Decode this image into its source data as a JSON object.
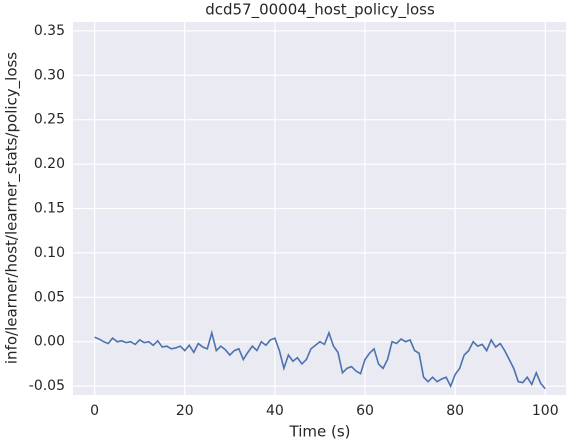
{
  "chart_data": {
    "type": "line",
    "title": "dcd57_00004_host_policy_loss",
    "xlabel": "Time (s)",
    "ylabel": "info/learner/host/learner_stats/policy_loss",
    "xlim": [
      -4.8,
      104.6
    ],
    "ylim": [
      -0.06,
      0.36
    ],
    "xticks": [
      0,
      20,
      40,
      60,
      80,
      100
    ],
    "yticks": [
      {
        "value": -0.05,
        "label": "-0.05"
      },
      {
        "value": 0,
        "label": "0.00"
      },
      {
        "value": 0.05,
        "label": "0.05"
      },
      {
        "value": 0.1,
        "label": "0.10"
      },
      {
        "value": 0.15,
        "label": "0.15"
      },
      {
        "value": 0.2,
        "label": "0.20"
      },
      {
        "value": 0.25,
        "label": "0.25"
      },
      {
        "value": 0.3,
        "label": "0.30"
      },
      {
        "value": 0.35,
        "label": "0.35"
      }
    ],
    "grid": true,
    "x": [
      0,
      1,
      2,
      3,
      4,
      5,
      6,
      7,
      8,
      9,
      10,
      11,
      12,
      13,
      14,
      15,
      16,
      17,
      18,
      19,
      20,
      21,
      22,
      23,
      24,
      25,
      26,
      27,
      28,
      29,
      30,
      31,
      32,
      33,
      34,
      35,
      36,
      37,
      38,
      39,
      40,
      41,
      42,
      43,
      44,
      45,
      46,
      47,
      48,
      49,
      50,
      51,
      52,
      53,
      54,
      55,
      56,
      57,
      58,
      59,
      60,
      61,
      62,
      63,
      64,
      65,
      66,
      67,
      68,
      69,
      70,
      71,
      72,
      73,
      74,
      75,
      76,
      77,
      78,
      79,
      80,
      81,
      82,
      83,
      84,
      85,
      86,
      87,
      88,
      89,
      90,
      91,
      92,
      93,
      94,
      95,
      96,
      97,
      98,
      99,
      100
    ],
    "series": [
      {
        "name": "policy_loss",
        "color": "#4c72b0",
        "values": [
          0.005,
          0.003,
          0.0,
          -0.002,
          0.004,
          0.0,
          0.001,
          -0.001,
          0.0,
          -0.003,
          0.002,
          -0.001,
          0.0,
          -0.004,
          0.001,
          -0.006,
          -0.005,
          -0.008,
          -0.007,
          -0.005,
          -0.01,
          -0.004,
          -0.012,
          -0.002,
          -0.006,
          -0.008,
          0.01,
          -0.01,
          -0.005,
          -0.009,
          -0.015,
          -0.01,
          -0.008,
          -0.02,
          -0.012,
          -0.005,
          -0.01,
          0.0,
          -0.004,
          0.002,
          0.004,
          -0.01,
          -0.03,
          -0.015,
          -0.022,
          -0.018,
          -0.025,
          -0.02,
          -0.008,
          -0.004,
          0.0,
          -0.003,
          0.01,
          -0.005,
          -0.012,
          -0.035,
          -0.03,
          -0.028,
          -0.033,
          -0.036,
          -0.02,
          -0.013,
          -0.008,
          -0.025,
          -0.03,
          -0.02,
          0.0,
          -0.002,
          0.003,
          0.0,
          0.002,
          -0.01,
          -0.013,
          -0.04,
          -0.045,
          -0.04,
          -0.045,
          -0.042,
          -0.04,
          -0.05,
          -0.037,
          -0.03,
          -0.015,
          -0.01,
          0.0,
          -0.005,
          -0.003,
          -0.01,
          0.002,
          -0.006,
          -0.002,
          -0.01,
          -0.02,
          -0.03,
          -0.045,
          -0.046,
          -0.04,
          -0.048,
          -0.035,
          -0.047,
          -0.053
        ]
      }
    ]
  }
}
